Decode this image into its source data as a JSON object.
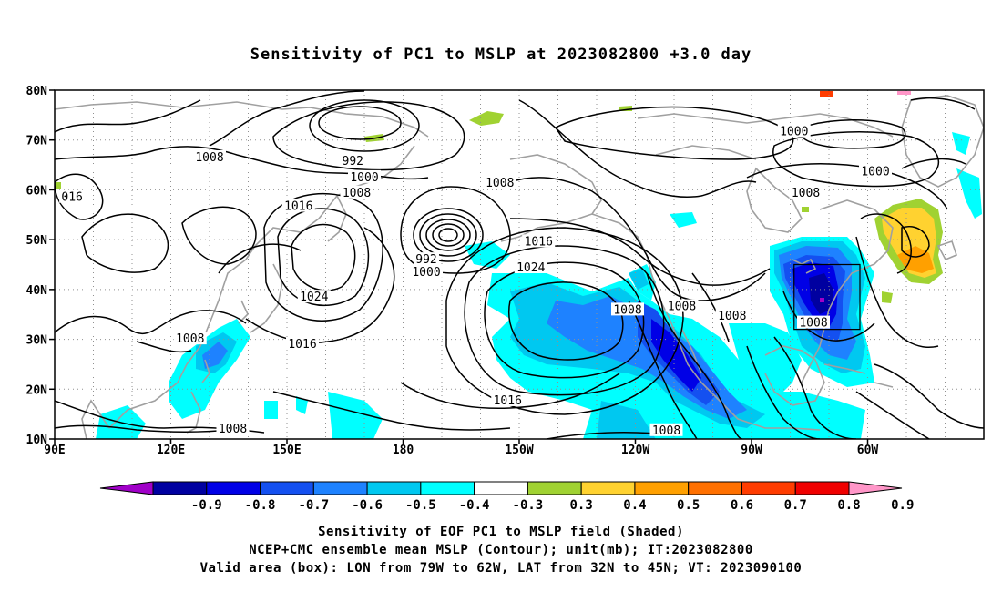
{
  "title": "Sensitivity of PC1 to MSLP at 2023082800 +3.0 day",
  "map": {
    "lat_labels": [
      "80N",
      "70N",
      "60N",
      "50N",
      "40N",
      "30N",
      "20N",
      "10N"
    ],
    "lon_labels": [
      "90E",
      "120E",
      "150E",
      "180",
      "150W",
      "120W",
      "90W",
      "60W"
    ],
    "contour_labels": [
      {
        "text": "1008",
        "lon": 130,
        "lat": 66.3
      },
      {
        "text": "992",
        "lon": 167,
        "lat": 65.6
      },
      {
        "text": "1000",
        "lon": 170,
        "lat": 62.3
      },
      {
        "text": "1008",
        "lon": 168,
        "lat": 59.2
      },
      {
        "text": "1016",
        "lon": 153,
        "lat": 56.5
      },
      {
        "text": "016",
        "lon": 94.5,
        "lat": 58.3
      },
      {
        "text": "992",
        "lon": 186,
        "lat": 45.8
      },
      {
        "text": "1000",
        "lon": 186,
        "lat": 43.3
      },
      {
        "text": "1016",
        "lon": 215,
        "lat": 49.4
      },
      {
        "text": "1024",
        "lon": 213,
        "lat": 44.2
      },
      {
        "text": "1008",
        "lon": 205,
        "lat": 61.2
      },
      {
        "text": "1024",
        "lon": 157,
        "lat": 38.3
      },
      {
        "text": "1008",
        "lon": 125,
        "lat": 29.9
      },
      {
        "text": "1016",
        "lon": 154,
        "lat": 28.8
      },
      {
        "text": "1008",
        "lon": 136,
        "lat": 11.8
      },
      {
        "text": "1016",
        "lon": 207,
        "lat": 17.5
      },
      {
        "text": "1008",
        "lon": 238,
        "lat": 35.7
      },
      {
        "text": "1008",
        "lon": 252,
        "lat": 36.4
      },
      {
        "text": "1008",
        "lon": 265,
        "lat": 34.5
      },
      {
        "text": "1008",
        "lon": 286,
        "lat": 33.1
      },
      {
        "text": "1008",
        "lon": 248,
        "lat": 11.5
      },
      {
        "text": "1000",
        "lon": 281,
        "lat": 71.5
      },
      {
        "text": "1008",
        "lon": 284,
        "lat": 59.2
      },
      {
        "text": "1000",
        "lon": 302,
        "lat": 63.5
      }
    ]
  },
  "colorbar": {
    "labels": [
      "-0.9",
      "-0.8",
      "-0.7",
      "-0.6",
      "-0.5",
      "-0.4",
      "-0.3",
      "0.3",
      "0.4",
      "0.5",
      "0.6",
      "0.7",
      "0.8",
      "0.9"
    ],
    "colors": [
      "#a000c8",
      "#0000a0",
      "#0000e6",
      "#1450f0",
      "#1e82ff",
      "#00c8f0",
      "#00ffff",
      "#ffffff",
      "#a0d232",
      "#ffd230",
      "#ffa000",
      "#ff7000",
      "#ff3c00",
      "#f00000",
      "#ff96c8"
    ]
  },
  "captions": {
    "line1": "Sensitivity of EOF PC1 to MSLP field (Shaded)",
    "line2": "NCEP+CMC ensemble mean MSLP (Contour); unit(mb); IT:2023082800",
    "line3": "Valid area (box): LON from 79W to 62W, LAT from 32N to 45N; VT: 2023090100"
  }
}
